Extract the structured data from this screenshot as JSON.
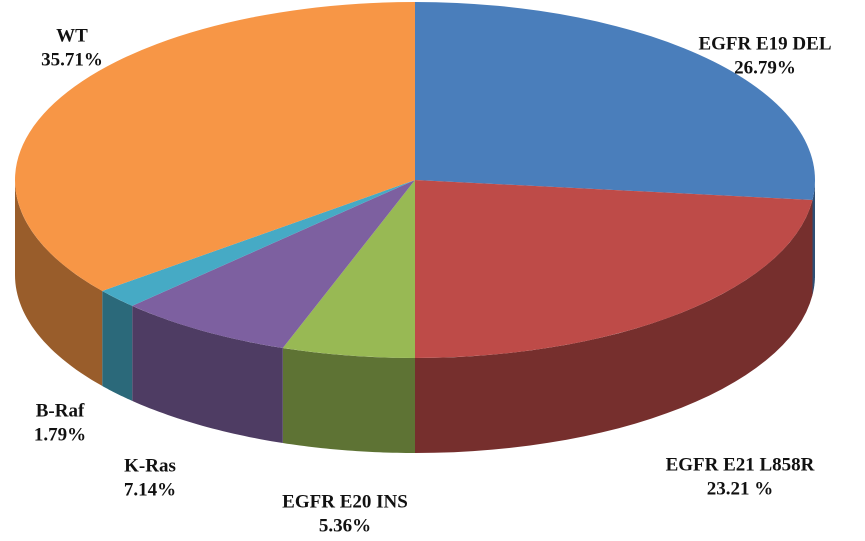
{
  "chart_data": {
    "type": "pie",
    "categories": [
      "EGFR E19 DEL",
      "EGFR E21 L858R",
      "EGFR E20 INS",
      "K-Ras",
      "B-Raf",
      "WT"
    ],
    "values": [
      26.79,
      23.21,
      5.36,
      7.14,
      1.79,
      35.71
    ],
    "value_labels": [
      "26.79%",
      "23.21 %",
      "5.36%",
      "7.14%",
      "1.79%",
      "35.71%"
    ],
    "colors": [
      "#4a7ebb",
      "#be4b48",
      "#98b954",
      "#7d60a0",
      "#46aac5",
      "#f79646"
    ]
  }
}
